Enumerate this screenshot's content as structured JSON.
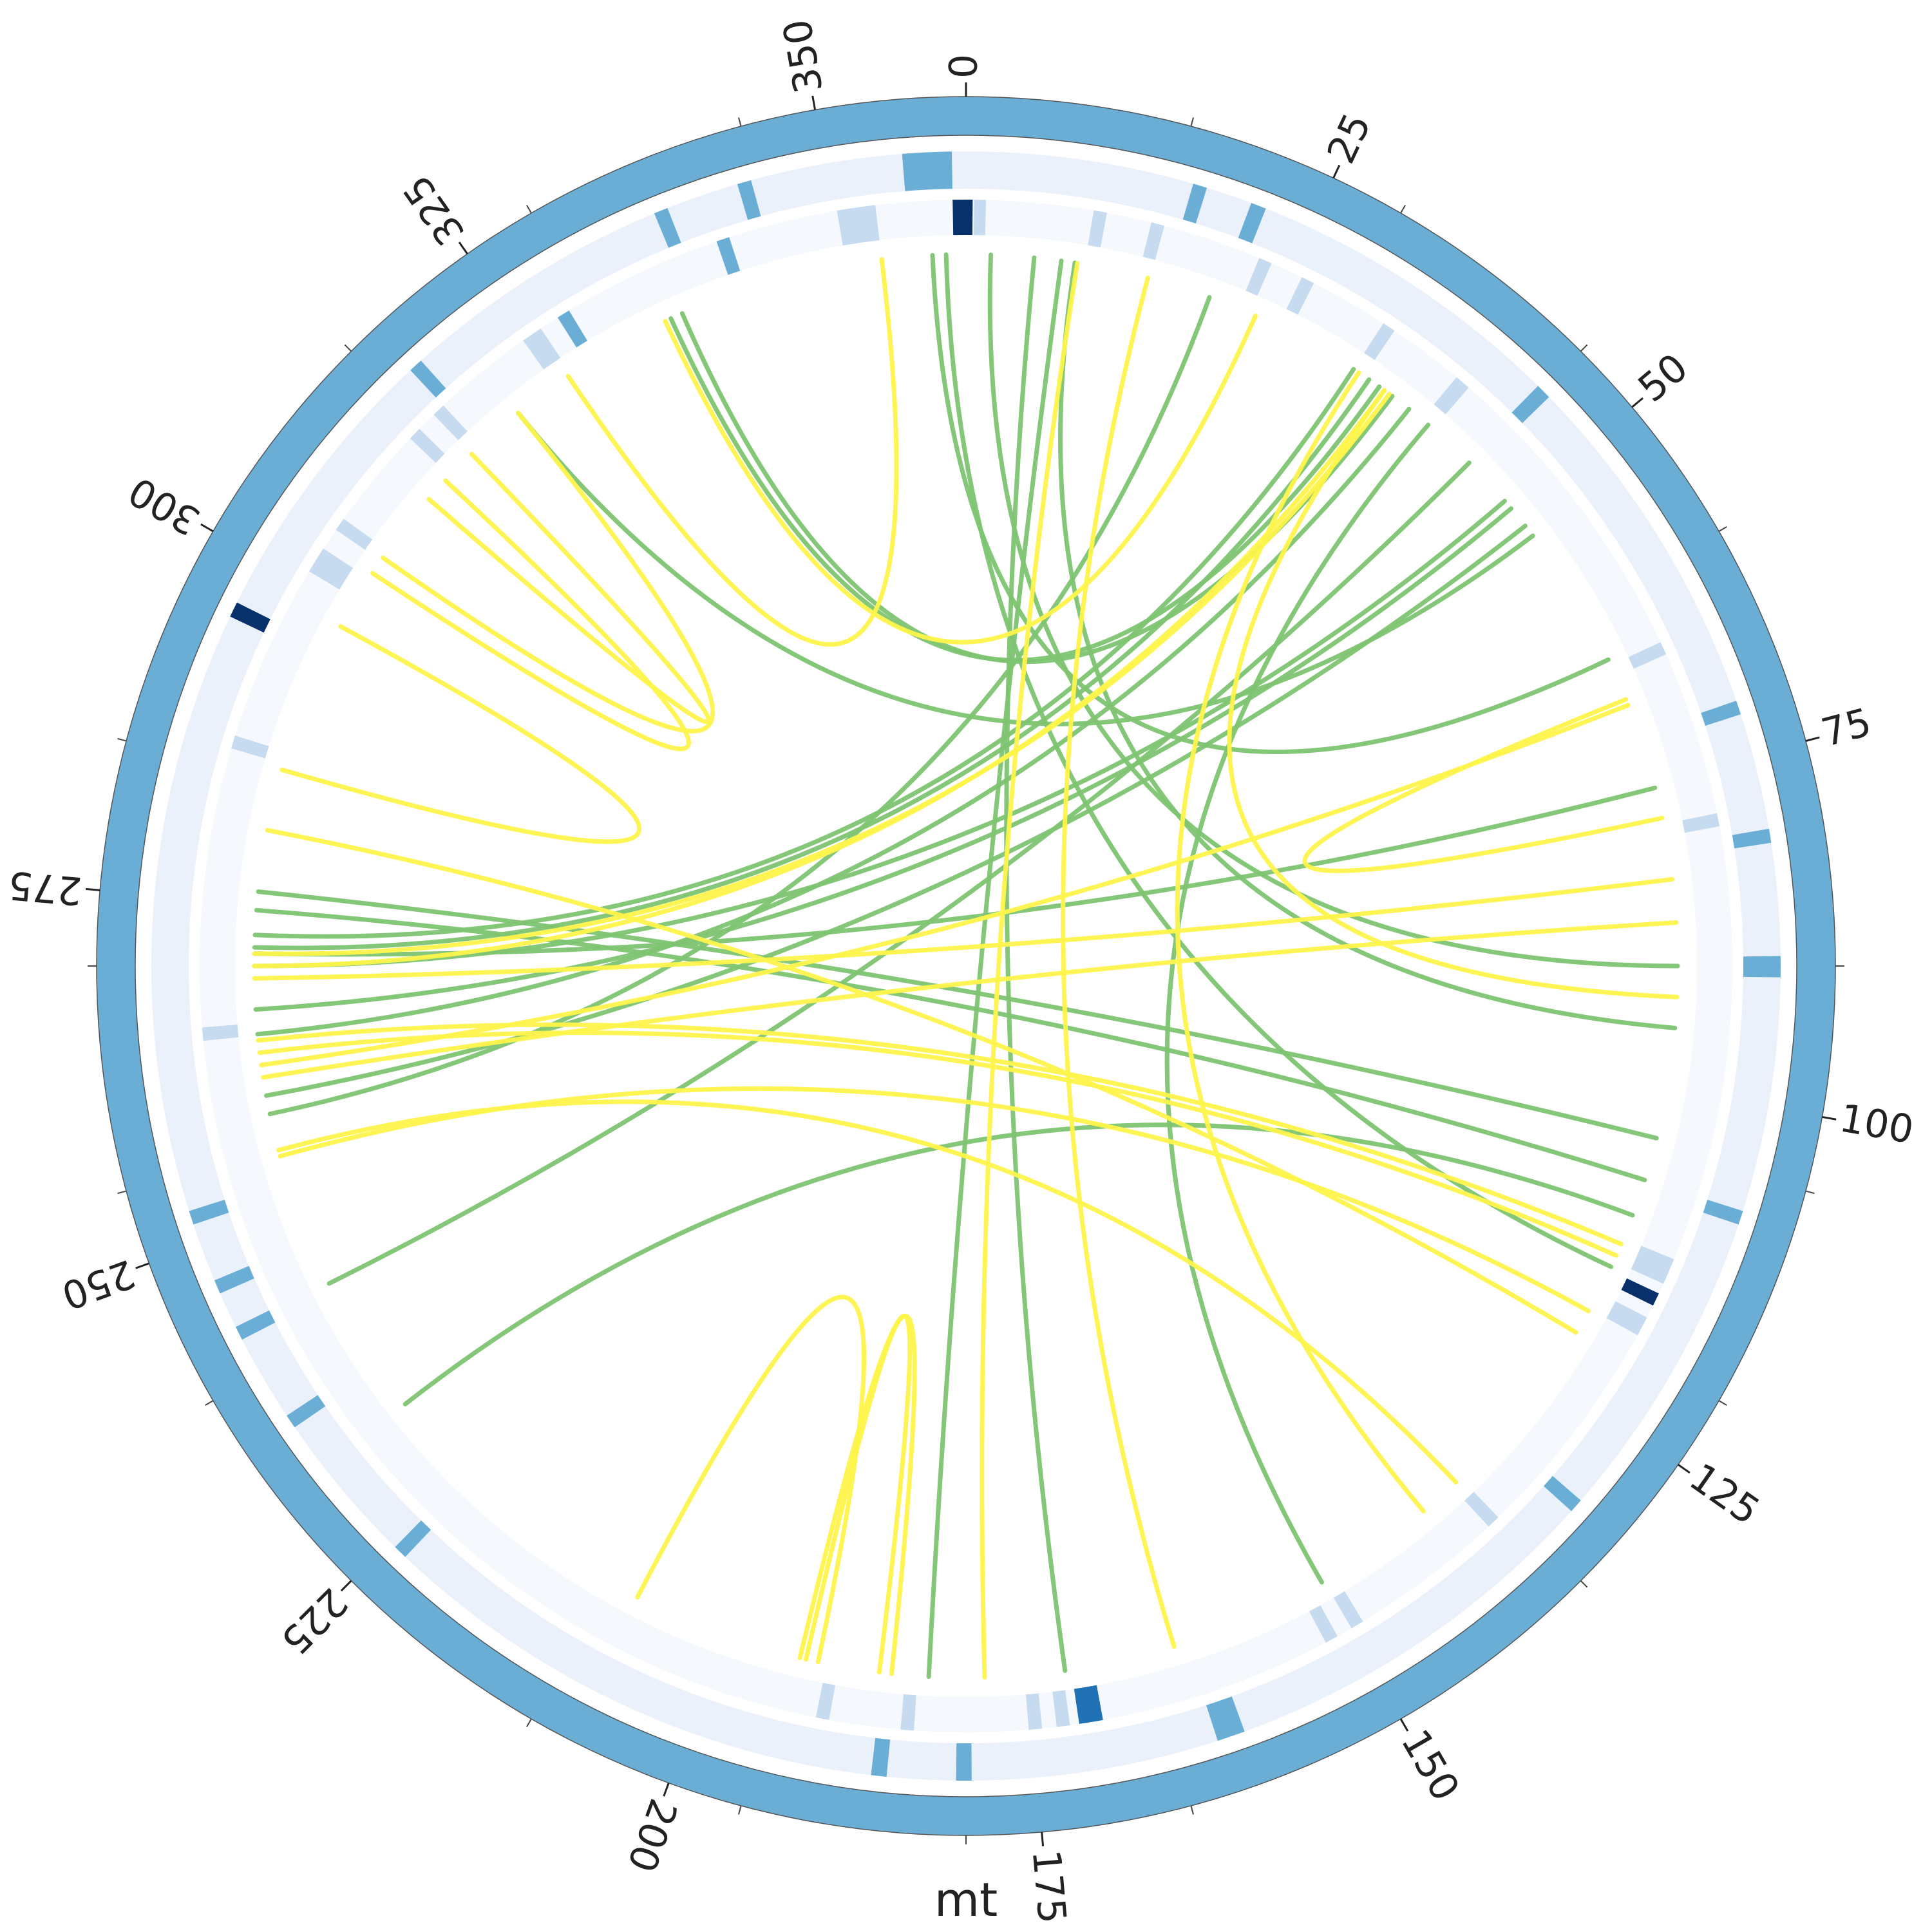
{
  "chart_data": {
    "type": "circos",
    "chromosome": {
      "name": "mt",
      "length": 360,
      "ticks_major": [
        0,
        25,
        50,
        75,
        100,
        125,
        150,
        175,
        200,
        225,
        250,
        275,
        300,
        325,
        350
      ],
      "tick_labels": [
        "0",
        "25",
        "50",
        "75",
        "100",
        "125",
        "150",
        "175",
        "200",
        "225",
        "250",
        "275",
        "300",
        "325",
        "350"
      ],
      "tick_minor_step": 15,
      "color": "#6aaed6"
    },
    "heatmap_tracks": [
      {
        "name": "track-outer",
        "background": "#eaf1fb",
        "features": [
          {
            "start": 355.5,
            "end": 359.0,
            "color": "#6aaed6"
          },
          {
            "start": 16.2,
            "end": 17.2,
            "color": "#6aaed6"
          },
          {
            "start": 20.5,
            "end": 21.6,
            "color": "#6aaed6"
          },
          {
            "start": 44.6,
            "end": 45.7,
            "color": "#6aaed6"
          },
          {
            "start": 71.0,
            "end": 72.0,
            "color": "#6aaed6"
          },
          {
            "start": 80.3,
            "end": 81.3,
            "color": "#6aaed6"
          },
          {
            "start": 89.3,
            "end": 90.8,
            "color": "#6aaed6"
          },
          {
            "start": 107.5,
            "end": 108.5,
            "color": "#6aaed6"
          },
          {
            "start": 131.0,
            "end": 132.0,
            "color": "#6aaed6"
          },
          {
            "start": 160.0,
            "end": 162.0,
            "color": "#6aaed6"
          },
          {
            "start": 179.6,
            "end": 180.7,
            "color": "#6aaed6"
          },
          {
            "start": 185.6,
            "end": 186.7,
            "color": "#6aaed6"
          },
          {
            "start": 223.5,
            "end": 224.5,
            "color": "#6aaed6"
          },
          {
            "start": 235.5,
            "end": 236.5,
            "color": "#6aaed6"
          },
          {
            "start": 242.7,
            "end": 243.7,
            "color": "#6aaed6"
          },
          {
            "start": 246.3,
            "end": 247.3,
            "color": "#6aaed6"
          },
          {
            "start": 251.5,
            "end": 252.5,
            "color": "#6aaed6"
          },
          {
            "start": 295.4,
            "end": 296.5,
            "color": "#08306b"
          },
          {
            "start": 317.0,
            "end": 318.0,
            "color": "#6aaed6"
          },
          {
            "start": 337.5,
            "end": 338.5,
            "color": "#6aaed6"
          },
          {
            "start": 343.7,
            "end": 344.7,
            "color": "#6aaed6"
          }
        ]
      },
      {
        "name": "track-inner",
        "background": "#f5f9fe",
        "features": [
          {
            "start": 359.0,
            "end": 0.5,
            "color": "#08306b"
          },
          {
            "start": 0.6,
            "end": 1.5,
            "color": "#c6dbef"
          },
          {
            "start": 9.6,
            "end": 10.6,
            "color": "#c6dbef"
          },
          {
            "start": 14.0,
            "end": 15.0,
            "color": "#c6dbef"
          },
          {
            "start": 22.5,
            "end": 23.5,
            "color": "#c6dbef"
          },
          {
            "start": 26.0,
            "end": 27.0,
            "color": "#c6dbef"
          },
          {
            "start": 33.0,
            "end": 34.0,
            "color": "#c6dbef"
          },
          {
            "start": 39.8,
            "end": 41.0,
            "color": "#c6dbef"
          },
          {
            "start": 65.0,
            "end": 66.0,
            "color": "#c6dbef"
          },
          {
            "start": 78.5,
            "end": 79.5,
            "color": "#c6dbef"
          },
          {
            "start": 112.5,
            "end": 114.5,
            "color": "#c6dbef"
          },
          {
            "start": 115.3,
            "end": 116.3,
            "color": "#08306b"
          },
          {
            "start": 117.3,
            "end": 118.8,
            "color": "#c6dbef"
          },
          {
            "start": 136.0,
            "end": 137.0,
            "color": "#c6dbef"
          },
          {
            "start": 148.8,
            "end": 149.8,
            "color": "#c6dbef"
          },
          {
            "start": 151.0,
            "end": 152.0,
            "color": "#c6dbef"
          },
          {
            "start": 169.7,
            "end": 171.5,
            "color": "#2171b5"
          },
          {
            "start": 172.2,
            "end": 173.2,
            "color": "#c6dbef"
          },
          {
            "start": 174.3,
            "end": 175.3,
            "color": "#c6dbef"
          },
          {
            "start": 183.9,
            "end": 184.9,
            "color": "#c6dbef"
          },
          {
            "start": 190.3,
            "end": 191.3,
            "color": "#c6dbef"
          },
          {
            "start": 264.4,
            "end": 265.4,
            "color": "#c6dbef"
          },
          {
            "start": 286.5,
            "end": 287.5,
            "color": "#c6dbef"
          },
          {
            "start": 301.0,
            "end": 303.0,
            "color": "#c6dbef"
          },
          {
            "start": 304.7,
            "end": 305.7,
            "color": "#c6dbef"
          },
          {
            "start": 313.5,
            "end": 314.5,
            "color": "#c6dbef"
          },
          {
            "start": 316.0,
            "end": 317.0,
            "color": "#c6dbef"
          },
          {
            "start": 324.7,
            "end": 326.3,
            "color": "#c6dbef"
          },
          {
            "start": 327.8,
            "end": 328.8,
            "color": "#6aaed6"
          },
          {
            "start": 341.0,
            "end": 342.0,
            "color": "#6aaed6"
          },
          {
            "start": 350.3,
            "end": 353.2,
            "color": "#c6dbef"
          }
        ]
      }
    ],
    "links": [
      {
        "start": 2.0,
        "end": 90.0,
        "color": "#7dc471"
      },
      {
        "start": 5.5,
        "end": 172.0,
        "color": "#7dc471"
      },
      {
        "start": 7.7,
        "end": 183.0,
        "color": "#7dc471"
      },
      {
        "start": 8.8,
        "end": 95.0,
        "color": "#7dc471"
      },
      {
        "start": 357.3,
        "end": 64.5,
        "color": "#7dc471"
      },
      {
        "start": 358.4,
        "end": 115.0,
        "color": "#7dc471"
      },
      {
        "start": 20.0,
        "end": 258.0,
        "color": "#7dc471"
      },
      {
        "start": 33.0,
        "end": 272.5,
        "color": "#7dc471"
      },
      {
        "start": 34.5,
        "end": 271.5,
        "color": "#7dc471"
      },
      {
        "start": 35.5,
        "end": 335.5,
        "color": "#7dc471"
      },
      {
        "start": 36.8,
        "end": 336.5,
        "color": "#7dc471"
      },
      {
        "start": 38.5,
        "end": 264.5,
        "color": "#7dc471"
      },
      {
        "start": 40.5,
        "end": 150.0,
        "color": "#7dc471"
      },
      {
        "start": 45.0,
        "end": 243.5,
        "color": "#7dc471"
      },
      {
        "start": 49.2,
        "end": 270.0,
        "color": "#7dc471"
      },
      {
        "start": 50.0,
        "end": 266.5,
        "color": "#7dc471"
      },
      {
        "start": 51.8,
        "end": 259.5,
        "color": "#7dc471"
      },
      {
        "start": 52.8,
        "end": 321.0,
        "color": "#7dc471"
      },
      {
        "start": 75.5,
        "end": 271.0,
        "color": "#7dc471"
      },
      {
        "start": 104.0,
        "end": 276.0,
        "color": "#7dc471"
      },
      {
        "start": 107.5,
        "end": 274.5,
        "color": "#7dc471"
      },
      {
        "start": 110.5,
        "end": 232.0,
        "color": "#7dc471"
      },
      {
        "start": 9.0,
        "end": 178.5,
        "color": "#fef44b"
      },
      {
        "start": 353.2,
        "end": 326.0,
        "color": "#fef44b"
      },
      {
        "start": 14.8,
        "end": 163.0,
        "color": "#fef44b"
      },
      {
        "start": 33.5,
        "end": 140.0,
        "color": "#fef44b"
      },
      {
        "start": 36.5,
        "end": 271.0,
        "color": "#fef44b"
      },
      {
        "start": 36.0,
        "end": 270.0,
        "color": "#fef44b"
      },
      {
        "start": 36.0,
        "end": 92.5,
        "color": "#fef44b"
      },
      {
        "start": 24.0,
        "end": 335.0,
        "color": "#fef44b"
      },
      {
        "start": 78.0,
        "end": 68.0,
        "color": "#fef44b"
      },
      {
        "start": 86.5,
        "end": 261.0,
        "color": "#fef44b"
      },
      {
        "start": 83.0,
        "end": 269.0,
        "color": "#fef44b"
      },
      {
        "start": 68.5,
        "end": 262.0,
        "color": "#fef44b"
      },
      {
        "start": 113.0,
        "end": 264.0,
        "color": "#fef44b"
      },
      {
        "start": 114.0,
        "end": 263.0,
        "color": "#fef44b"
      },
      {
        "start": 119.0,
        "end": 254.5,
        "color": "#fef44b"
      },
      {
        "start": 121.0,
        "end": 281.0,
        "color": "#fef44b"
      },
      {
        "start": 192.0,
        "end": 207.5,
        "color": "#fef44b"
      },
      {
        "start": 193.0,
        "end": 187.0,
        "color": "#fef44b"
      },
      {
        "start": 193.5,
        "end": 186.0,
        "color": "#fef44b"
      },
      {
        "start": 255.0,
        "end": 136.5,
        "color": "#fef44b"
      },
      {
        "start": 303.5,
        "end": 313.0,
        "color": "#fef44b"
      },
      {
        "start": 298.5,
        "end": 286.0,
        "color": "#fef44b"
      },
      {
        "start": 321.0,
        "end": 305.0,
        "color": "#fef44b"
      },
      {
        "start": 311.0,
        "end": 316.0,
        "color": "#fef44b"
      }
    ]
  }
}
